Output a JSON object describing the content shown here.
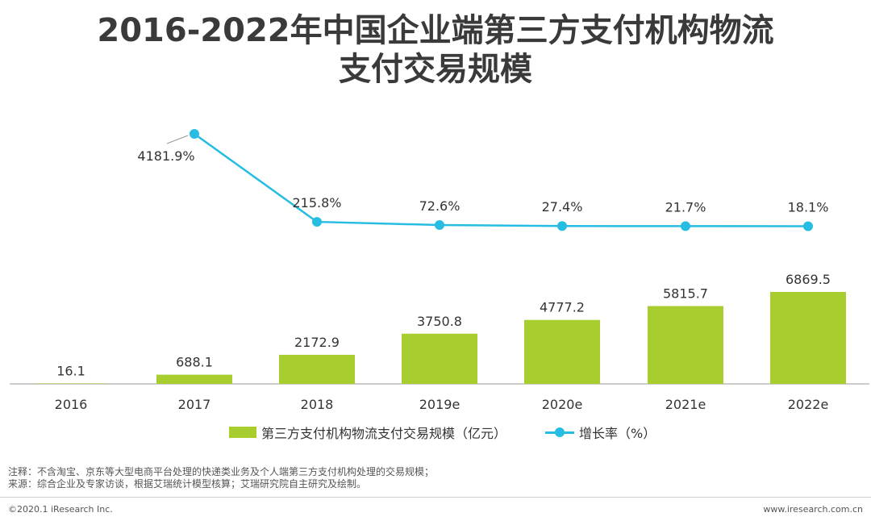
{
  "title": {
    "line1": "2016-2022年中国企业端第三方支付机构物流",
    "line2": "支付交易规模"
  },
  "chart_data": {
    "type": "bar",
    "categories": [
      "2016",
      "2017",
      "2018",
      "2019e",
      "2020e",
      "2021e",
      "2022e"
    ],
    "series": [
      {
        "name": "第三方支付机构物流支付交易规模（亿元）",
        "type": "bar",
        "values": [
          16.1,
          688.1,
          2172.9,
          3750.8,
          4777.2,
          5815.7,
          6869.5
        ],
        "labels": [
          "16.1",
          "688.1",
          "2172.9",
          "3750.8",
          "4777.2",
          "5815.7",
          "6869.5"
        ]
      },
      {
        "name": "增长率（%）",
        "type": "line",
        "values": [
          null,
          4181.9,
          215.8,
          72.6,
          27.4,
          21.7,
          18.1
        ],
        "labels": [
          "",
          "4181.9%",
          "215.8%",
          "72.6%",
          "27.4%",
          "21.7%",
          "18.1%"
        ]
      }
    ],
    "ylim": [
      0,
      7500
    ],
    "y2lim": [
      0,
      4600
    ],
    "xlabel": "",
    "ylabel": ""
  },
  "colors": {
    "bar": "#a7cd2e",
    "line": "#27bde2",
    "axis": "#bbbbbb",
    "label": "#333333"
  },
  "legend": {
    "bar_label": "第三方支付机构物流支付交易规模（亿元）",
    "line_label": "增长率（%）"
  },
  "notes": {
    "note": "注释：不含淘宝、京东等大型电商平台处理的快递类业务及个人端第三方支付机构处理的交易规模；",
    "source": "来源：综合企业及专家访谈，根据艾瑞统计模型核算；艾瑞研究院自主研究及绘制。"
  },
  "footer": {
    "copyright": "©2020.1 iResearch Inc.",
    "website": "www.iresearch.com.cn"
  }
}
